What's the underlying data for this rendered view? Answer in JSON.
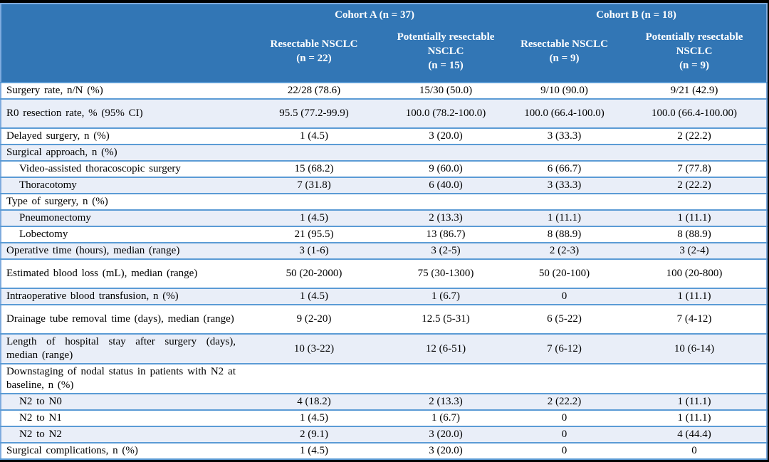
{
  "colors": {
    "header_bg": "#3276B5",
    "row_alt_bg": "#E9EEF8",
    "separator": "#5B9BD5",
    "outer_border": "#7FABDE",
    "header_text": "#FFFFFF",
    "body_text": "#000000",
    "page_bg": "#000000"
  },
  "table": {
    "header": {
      "cohort_a": "Cohort A (n = 37)",
      "cohort_b": "Cohort B (n = 18)",
      "columns": [
        {
          "title": "Resectable NSCLC",
          "n": "(n = 22)"
        },
        {
          "title": "Potentially resectable NSCLC",
          "n": "(n = 15)"
        },
        {
          "title": "Resectable NSCLC",
          "n": "(n = 9)"
        },
        {
          "title": "Potentially resectable NSCLC",
          "n": "(n = 9)"
        }
      ]
    },
    "rows": [
      {
        "label": "Surgery rate, n/N (%)",
        "indent": false,
        "tall": false,
        "values": [
          "22/28 (78.6)",
          "15/30 (50.0)",
          "9/10 (90.0)",
          "9/21 (42.9)"
        ]
      },
      {
        "label": "R0 resection rate, % (95% CI)",
        "indent": false,
        "tall": true,
        "values": [
          "95.5 (77.2-99.9)",
          "100.0 (78.2-100.0)",
          "100.0 (66.4-100.0)",
          "100.0 (66.4-100.00)"
        ]
      },
      {
        "label": "Delayed surgery, n (%)",
        "indent": false,
        "tall": false,
        "values": [
          "1 (4.5)",
          "3 (20.0)",
          "3 (33.3)",
          "2 (22.2)"
        ]
      },
      {
        "label": "Surgical approach, n (%)",
        "indent": false,
        "tall": false,
        "values": [
          "",
          "",
          "",
          ""
        ]
      },
      {
        "label": "Video-assisted thoracoscopic surgery",
        "indent": true,
        "tall": false,
        "values": [
          "15 (68.2)",
          "9 (60.0)",
          "6 (66.7)",
          "7 (77.8)"
        ]
      },
      {
        "label": "Thoracotomy",
        "indent": true,
        "tall": false,
        "values": [
          "7 (31.8)",
          "6 (40.0)",
          "3 (33.3)",
          "2 (22.2)"
        ]
      },
      {
        "label": "Type of surgery, n (%)",
        "indent": false,
        "tall": false,
        "values": [
          "",
          "",
          "",
          ""
        ]
      },
      {
        "label": "Pneumonectomy",
        "indent": true,
        "tall": false,
        "values": [
          "1 (4.5)",
          "2 (13.3)",
          "1 (11.1)",
          "1 (11.1)"
        ]
      },
      {
        "label": "Lobectomy",
        "indent": true,
        "tall": false,
        "values": [
          "21 (95.5)",
          "13 (86.7)",
          "8 (88.9)",
          "8 (88.9)"
        ]
      },
      {
        "label": "Operative time (hours), median (range)",
        "indent": false,
        "tall": false,
        "values": [
          "3 (1-6)",
          "3 (2-5)",
          "2 (2-3)",
          "3 (2-4)"
        ]
      },
      {
        "label": "Estimated blood loss (mL), median (range)",
        "indent": false,
        "tall": true,
        "values": [
          "50 (20-2000)",
          "75 (30-1300)",
          "50 (20-100)",
          "100 (20-800)"
        ]
      },
      {
        "label": "Intraoperative blood transfusion, n (%)",
        "indent": false,
        "tall": false,
        "values": [
          "1 (4.5)",
          "1 (6.7)",
          "0",
          "1 (11.1)"
        ]
      },
      {
        "label": "Drainage tube removal time (days), median (range)",
        "indent": false,
        "tall": true,
        "values": [
          "9 (2-20)",
          "12.5 (5-31)",
          "6 (5-22)",
          "7 (4-12)"
        ]
      },
      {
        "label": "Length of hospital stay after surgery (days), median (range)",
        "indent": false,
        "tall": true,
        "values": [
          "10 (3-22)",
          "12 (6-51)",
          "7 (6-12)",
          "10 (6-14)"
        ]
      },
      {
        "label": "Downstaging of nodal status in patients with N2 at baseline, n (%)",
        "indent": false,
        "tall": true,
        "values": [
          "",
          "",
          "",
          ""
        ]
      },
      {
        "label": "N2 to N0",
        "indent": true,
        "tall": false,
        "values": [
          "4 (18.2)",
          "2 (13.3)",
          "2 (22.2)",
          "1 (11.1)"
        ]
      },
      {
        "label": "N2 to N1",
        "indent": true,
        "tall": false,
        "values": [
          "1 (4.5)",
          "1 (6.7)",
          "0",
          "1 (11.1)"
        ]
      },
      {
        "label": "N2 to N2",
        "indent": true,
        "tall": false,
        "values": [
          "2 (9.1)",
          "3 (20.0)",
          "0",
          "4 (44.4)"
        ]
      },
      {
        "label": "Surgical complications, n (%)",
        "indent": false,
        "tall": false,
        "values": [
          "1 (4.5)",
          "3 (20.0)",
          "0",
          "0"
        ]
      }
    ]
  }
}
